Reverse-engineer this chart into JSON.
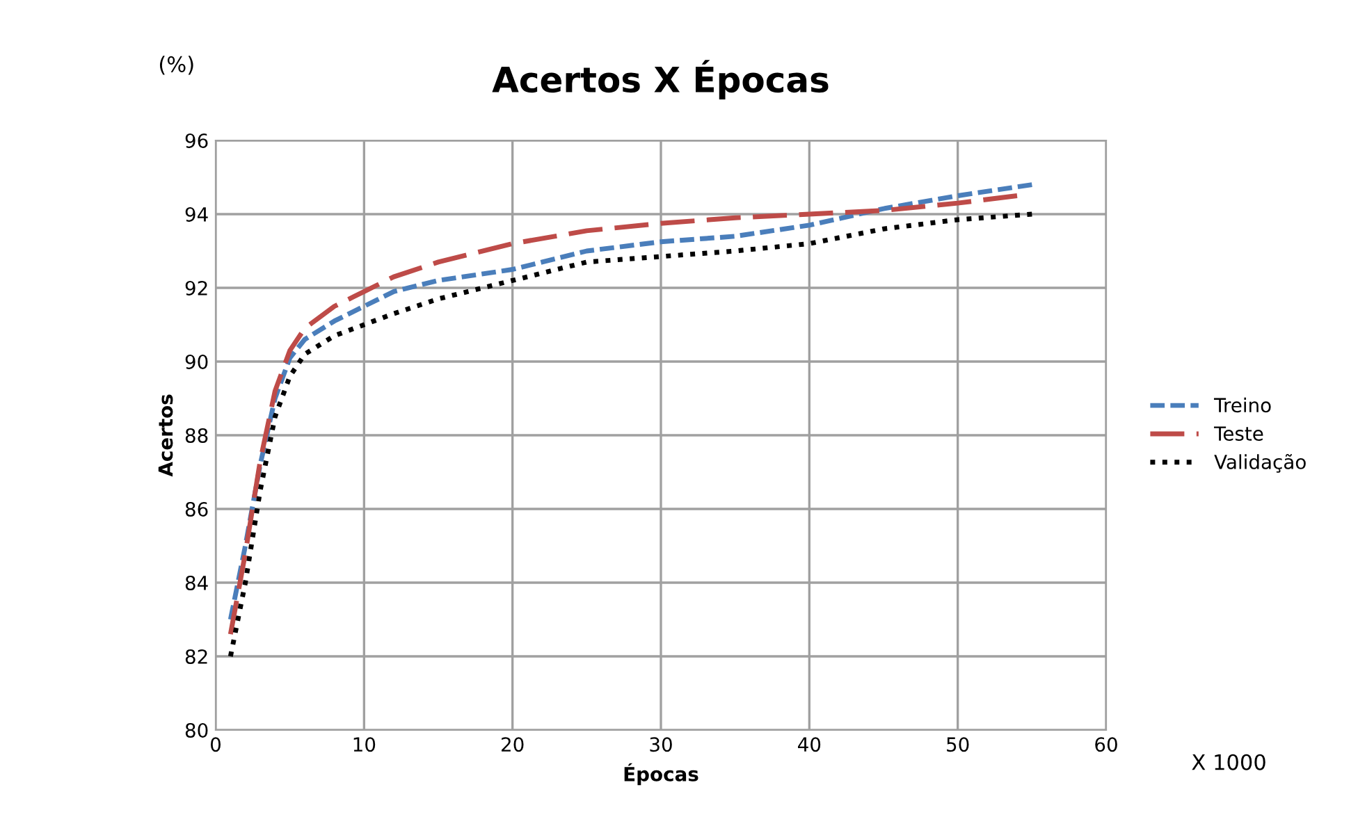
{
  "chart_data": {
    "type": "line",
    "title": "Acertos X Épocas",
    "xlabel": "Épocas",
    "ylabel": "Acertos",
    "annotations": [
      "(%)",
      "X 1000"
    ],
    "xlim": [
      0,
      60
    ],
    "xticks": [
      0,
      10,
      20,
      30,
      40,
      50,
      60
    ],
    "ylim": [
      80,
      96
    ],
    "yticks": [
      80,
      82,
      84,
      86,
      88,
      90,
      92,
      94,
      96
    ],
    "grid": true,
    "legend": "right",
    "series": [
      {
        "name": "Treino",
        "color": "#4a7ebb",
        "line_style": "dashed",
        "x": [
          1,
          2,
          3,
          4,
          5,
          6,
          8,
          10,
          12,
          15,
          20,
          25,
          30,
          35,
          40,
          45,
          50,
          55
        ],
        "values": [
          83.0,
          85.0,
          87.2,
          89.0,
          90.1,
          90.6,
          91.1,
          91.5,
          91.9,
          92.2,
          92.5,
          93.0,
          93.25,
          93.4,
          93.7,
          94.15,
          94.5,
          94.8
        ]
      },
      {
        "name": "Teste",
        "color": "#be4b48",
        "line_style": "longdash",
        "x": [
          1,
          2,
          3,
          4,
          5,
          6,
          8,
          10,
          12,
          15,
          20,
          25,
          30,
          35,
          40,
          45,
          50,
          54
        ],
        "values": [
          82.6,
          84.8,
          87.3,
          89.2,
          90.3,
          90.9,
          91.5,
          91.9,
          92.3,
          92.7,
          93.2,
          93.55,
          93.75,
          93.9,
          94.0,
          94.1,
          94.3,
          94.5
        ]
      },
      {
        "name": "Validação",
        "color": "#000000",
        "line_style": "dotted",
        "x": [
          1,
          2,
          3,
          4,
          5,
          6,
          8,
          10,
          12,
          15,
          20,
          25,
          30,
          35,
          40,
          45,
          50,
          55
        ],
        "values": [
          82.0,
          84.0,
          86.5,
          88.5,
          89.6,
          90.2,
          90.7,
          91.0,
          91.3,
          91.7,
          92.2,
          92.7,
          92.85,
          93.0,
          93.2,
          93.6,
          93.85,
          94.0
        ]
      }
    ]
  }
}
